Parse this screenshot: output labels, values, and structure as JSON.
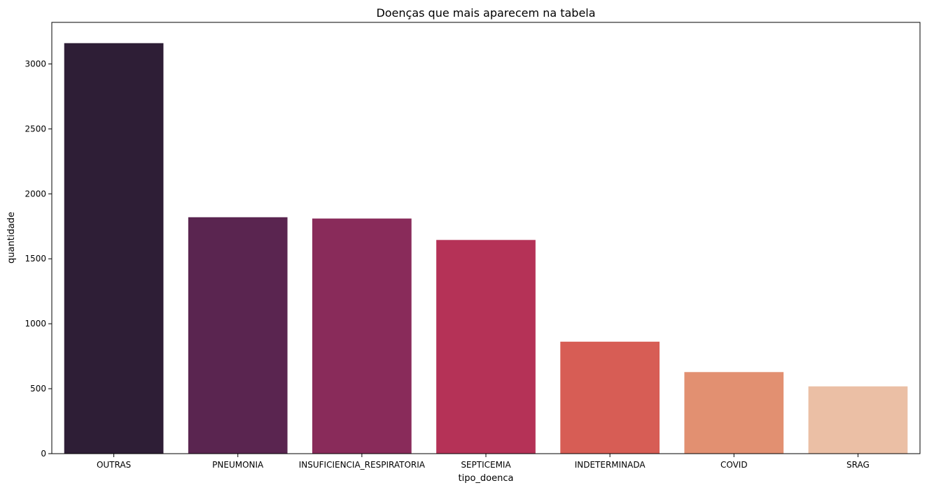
{
  "chart_data": {
    "type": "bar",
    "title": "Doenças que mais aparecem na tabela",
    "xlabel": "tipo_doenca",
    "ylabel": "quantidade",
    "categories": [
      "OUTRAS",
      "PNEUMONIA",
      "INSUFICIENCIA_RESPIRATORIA",
      "SEPTICEMIA",
      "INDETERMINADA",
      "COVID",
      "SRAG"
    ],
    "values": [
      3160,
      1820,
      1810,
      1645,
      862,
      628,
      518
    ],
    "colors": [
      "#2e1e36",
      "#5a2550",
      "#892b5a",
      "#b53257",
      "#d75d55",
      "#e29071",
      "#ebbfa5"
    ],
    "yticks": [
      0,
      500,
      1000,
      1500,
      2000,
      2500,
      3000
    ],
    "ylim": [
      0,
      3320
    ],
    "grid": false,
    "legend": "none"
  }
}
